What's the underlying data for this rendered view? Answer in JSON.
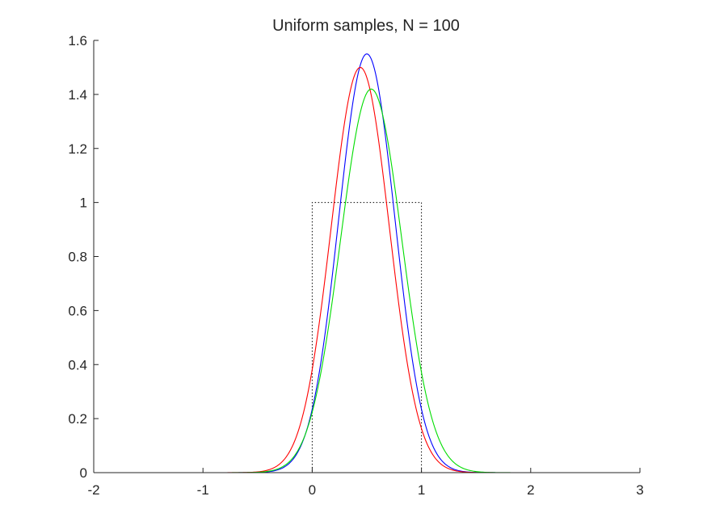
{
  "chart_data": {
    "type": "line",
    "title": "Uniform samples, N = 100",
    "xlabel": "",
    "ylabel": "",
    "xlim": [
      -2,
      3
    ],
    "ylim": [
      0,
      1.6
    ],
    "xticks": [
      "-2",
      "-1",
      "0",
      "1",
      "2",
      "3"
    ],
    "xtick_values": [
      -2,
      -1,
      0,
      1,
      2,
      3
    ],
    "yticks": [
      "0",
      "0.2",
      "0.4",
      "0.6",
      "0.8",
      "1",
      "1.2",
      "1.4",
      "1.6"
    ],
    "ytick_values": [
      0,
      0.2,
      0.4,
      0.6,
      0.8,
      1,
      1.2,
      1.4,
      1.6
    ],
    "grid": false,
    "legend": "none",
    "reference_density": {
      "style": "dotted",
      "color": "#000000",
      "x": [
        -2,
        0,
        0,
        1,
        1,
        3
      ],
      "y": [
        0,
        0,
        1,
        1,
        0,
        0
      ]
    },
    "series": [
      {
        "color": "#0000ff",
        "mean": 0.5,
        "peak": 1.55
      },
      {
        "color": "#ff0000",
        "mean": 0.44,
        "peak": 1.5
      },
      {
        "color": "#00dd00",
        "mean": 0.54,
        "peak": 1.42
      }
    ]
  }
}
